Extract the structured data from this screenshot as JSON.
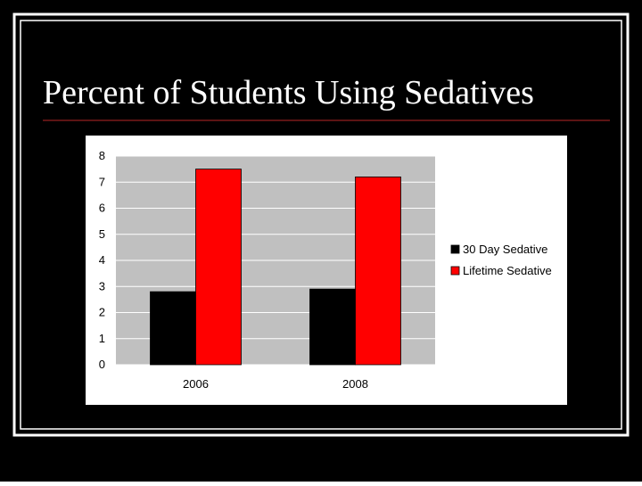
{
  "slide": {
    "title": "Percent of Students Using Sedatives"
  },
  "colors": {
    "slide_background": "#000000",
    "frame_lines": "#ffffff",
    "title_rule": "#7a1a1a",
    "chart_background": "#ffffff",
    "plot_area": "#c0c0c0",
    "gridlines": "#ffffff"
  },
  "chart_data": {
    "type": "bar",
    "title": "",
    "xlabel": "",
    "ylabel": "",
    "categories": [
      "2006",
      "2008"
    ],
    "series": [
      {
        "name": "30 Day Sedative",
        "values": [
          2.8,
          2.9
        ],
        "color": "#000000"
      },
      {
        "name": "Lifetime Sedative",
        "values": [
          7.5,
          7.2
        ],
        "color": "#ff0000"
      }
    ],
    "ylim": [
      0,
      8
    ],
    "yticks": [
      "0",
      "1",
      "2",
      "3",
      "4",
      "5",
      "6",
      "7",
      "8"
    ],
    "grid": true,
    "legend_position": "right"
  }
}
